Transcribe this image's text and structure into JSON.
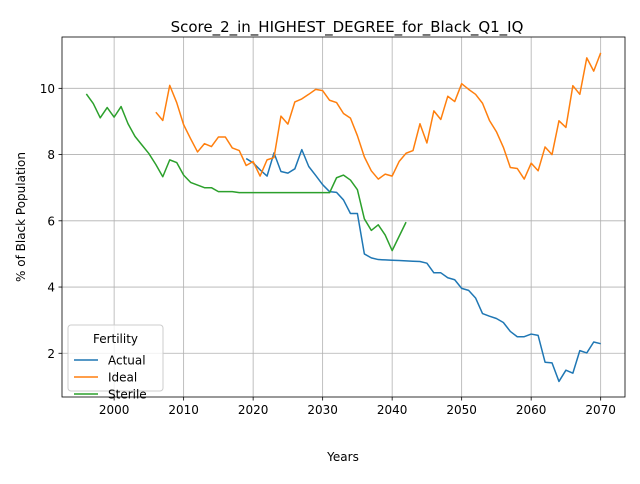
{
  "chart_data": {
    "type": "line",
    "title": "Score_2_in_HIGHEST_DEGREE_for_Black_Q1_IQ",
    "xlabel": "Years",
    "ylabel": "% of Black Population",
    "xlim": [
      1992.5,
      2073.5
    ],
    "ylim": [
      0.68,
      11.55
    ],
    "xticks": [
      2000,
      2010,
      2020,
      2030,
      2040,
      2050,
      2060,
      2070
    ],
    "yticks": [
      2,
      4,
      6,
      8,
      10
    ],
    "grid": true,
    "legend": {
      "title": "Fertility",
      "placement": "lower-left"
    },
    "series": [
      {
        "name": "Actual",
        "color": "#1f77b4",
        "x": [
          2019,
          2020,
          2021,
          2022,
          2023,
          2024,
          2025,
          2026,
          2027,
          2028,
          2029,
          2030,
          2031,
          2032,
          2033,
          2034,
          2035,
          2036,
          2037,
          2038,
          2039,
          2040,
          2041,
          2042,
          2043,
          2044,
          2045,
          2046,
          2047,
          2048,
          2049,
          2050,
          2051,
          2052,
          2053,
          2054,
          2055,
          2056,
          2057,
          2058,
          2059,
          2060,
          2061,
          2062,
          2063,
          2064,
          2065,
          2066,
          2067,
          2068,
          2069,
          2070
        ],
        "y": [
          7.88,
          7.75,
          7.54,
          7.35,
          8.05,
          7.49,
          7.44,
          7.57,
          8.15,
          7.64,
          7.37,
          7.09,
          6.88,
          6.86,
          6.63,
          6.22,
          6.22,
          5.0,
          4.88,
          4.83,
          4.82,
          4.81,
          4.8,
          4.79,
          4.78,
          4.77,
          4.72,
          4.43,
          4.43,
          4.28,
          4.22,
          3.96,
          3.9,
          3.67,
          3.2,
          3.12,
          3.05,
          2.93,
          2.66,
          2.5,
          2.5,
          2.58,
          2.54,
          1.73,
          1.71,
          1.15,
          1.49,
          1.4,
          2.08,
          2.01,
          2.34,
          2.29
        ]
      },
      {
        "name": "Ideal",
        "color": "#ff7f0e",
        "x": [
          2006,
          2007,
          2008,
          2009,
          2010,
          2011,
          2012,
          2013,
          2014,
          2015,
          2016,
          2017,
          2018,
          2019,
          2020,
          2021,
          2022,
          2023,
          2024,
          2025,
          2026,
          2027,
          2028,
          2029,
          2030,
          2031,
          2032,
          2033,
          2034,
          2035,
          2036,
          2037,
          2038,
          2039,
          2040,
          2041,
          2042,
          2043,
          2044,
          2045,
          2046,
          2047,
          2048,
          2049,
          2050,
          2051,
          2052,
          2053,
          2054,
          2055,
          2056,
          2057,
          2058,
          2059,
          2060,
          2061,
          2062,
          2063,
          2064,
          2065,
          2066,
          2067,
          2068,
          2069,
          2070
        ],
        "y": [
          9.28,
          9.03,
          10.09,
          9.57,
          8.9,
          8.48,
          8.08,
          8.33,
          8.24,
          8.53,
          8.53,
          8.2,
          8.12,
          7.67,
          7.79,
          7.35,
          7.84,
          7.91,
          9.16,
          8.92,
          9.59,
          9.68,
          9.82,
          9.97,
          9.93,
          9.64,
          9.57,
          9.24,
          9.1,
          8.57,
          7.93,
          7.51,
          7.26,
          7.41,
          7.35,
          7.79,
          8.04,
          8.12,
          8.93,
          8.35,
          9.32,
          9.06,
          9.76,
          9.6,
          10.14,
          9.97,
          9.82,
          9.55,
          9.03,
          8.69,
          8.22,
          7.61,
          7.58,
          7.26,
          7.74,
          7.51,
          8.23,
          8.0,
          9.02,
          8.82,
          10.08,
          9.82,
          10.92,
          10.52,
          11.07
        ]
      },
      {
        "name": "Sterile",
        "color": "#2ca02c",
        "x": [
          1996,
          1997,
          1998,
          1999,
          2000,
          2001,
          2002,
          2003,
          2004,
          2005,
          2006,
          2007,
          2008,
          2009,
          2010,
          2011,
          2012,
          2013,
          2014,
          2015,
          2016,
          2017,
          2018,
          2019,
          2020,
          2021,
          2022,
          2023,
          2024,
          2025,
          2026,
          2027,
          2028,
          2029,
          2030,
          2031,
          2032,
          2033,
          2034,
          2035,
          2036,
          2037,
          2038,
          2039,
          2040,
          2041,
          2042
        ],
        "y": [
          9.83,
          9.54,
          9.11,
          9.42,
          9.13,
          9.45,
          8.93,
          8.55,
          8.29,
          8.03,
          7.7,
          7.33,
          7.84,
          7.76,
          7.38,
          7.16,
          7.08,
          7.0,
          7.0,
          6.88,
          6.88,
          6.88,
          6.85,
          6.85,
          6.85,
          6.85,
          6.85,
          6.85,
          6.85,
          6.85,
          6.85,
          6.85,
          6.85,
          6.85,
          6.85,
          6.85,
          7.3,
          7.38,
          7.23,
          6.94,
          6.06,
          5.71,
          5.88,
          5.57,
          5.1,
          5.53,
          5.96
        ]
      }
    ]
  }
}
